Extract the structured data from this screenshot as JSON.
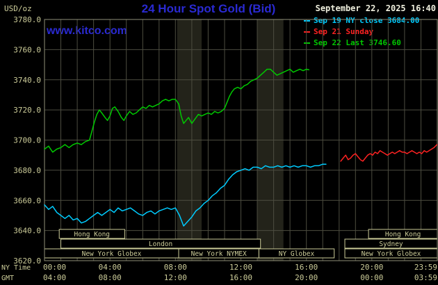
{
  "header": {
    "unit_label": "USD/oz",
    "title": "24 Hour Spot Gold (Bid)",
    "datetime": "September 22, 2025 16:40",
    "watermark": "www.kitco.com"
  },
  "legend": [
    {
      "label": "Sep 19 NY close 3684.00",
      "color": "#00ccff"
    },
    {
      "label": "Sep 21 Sunday",
      "color": "#ff2222"
    },
    {
      "label": "Sep 22 Last 3746.60",
      "color": "#00c800"
    }
  ],
  "axes": {
    "y_ticks": [
      "3780.0",
      "3760.0",
      "3740.0",
      "3720.0",
      "3700.0",
      "3680.0",
      "3660.0",
      "3640.0",
      "3620.0"
    ],
    "x_tick_hours": [
      0,
      4,
      8,
      12,
      16,
      20,
      24
    ],
    "x_ny_ticks": [
      "00:00",
      "04:00",
      "08:00",
      "12:00",
      "16:00",
      "20:00",
      "23:59"
    ],
    "x_gmt_ticks": [
      "04:00",
      "08:00",
      "12:00",
      "16:00",
      "20:00",
      "00:00",
      "03:59"
    ],
    "x_ny_label": "NY Time",
    "x_gmt_label": "GMT"
  },
  "chart_data": {
    "type": "line",
    "title": "24 Hour Spot Gold (Bid)",
    "ylabel": "USD/oz",
    "ylim": [
      3620,
      3780
    ],
    "xlim_hours": [
      0,
      24
    ],
    "grid": true,
    "x_unit": "hour of day, NY time",
    "shaded_bands_hours": [
      [
        8.1,
        9.6
      ],
      [
        13.0,
        14.6
      ]
    ],
    "series": [
      {
        "name": "Sep 19 NY close",
        "close": 3684.0,
        "color": "#00ccff",
        "points": [
          [
            0,
            3657
          ],
          [
            0.25,
            3654
          ],
          [
            0.5,
            3656
          ],
          [
            0.75,
            3652
          ],
          [
            1,
            3650
          ],
          [
            1.25,
            3648
          ],
          [
            1.5,
            3650
          ],
          [
            1.75,
            3647
          ],
          [
            2,
            3648
          ],
          [
            2.25,
            3645
          ],
          [
            2.5,
            3646
          ],
          [
            2.75,
            3648
          ],
          [
            3,
            3650
          ],
          [
            3.25,
            3652
          ],
          [
            3.5,
            3650
          ],
          [
            3.75,
            3652
          ],
          [
            4,
            3654
          ],
          [
            4.25,
            3652
          ],
          [
            4.5,
            3655
          ],
          [
            4.75,
            3653
          ],
          [
            5,
            3654
          ],
          [
            5.25,
            3655
          ],
          [
            5.5,
            3653
          ],
          [
            5.75,
            3651
          ],
          [
            6,
            3650
          ],
          [
            6.25,
            3652
          ],
          [
            6.5,
            3653
          ],
          [
            6.75,
            3651
          ],
          [
            7,
            3653
          ],
          [
            7.25,
            3654
          ],
          [
            7.5,
            3655
          ],
          [
            7.75,
            3654
          ],
          [
            8,
            3655
          ],
          [
            8.25,
            3650
          ],
          [
            8.5,
            3643
          ],
          [
            8.75,
            3646
          ],
          [
            9,
            3649
          ],
          [
            9.25,
            3653
          ],
          [
            9.5,
            3655
          ],
          [
            9.75,
            3658
          ],
          [
            10,
            3660
          ],
          [
            10.25,
            3663
          ],
          [
            10.5,
            3665
          ],
          [
            10.75,
            3668
          ],
          [
            11,
            3670
          ],
          [
            11.25,
            3674
          ],
          [
            11.5,
            3677
          ],
          [
            11.75,
            3679
          ],
          [
            12,
            3680
          ],
          [
            12.25,
            3681
          ],
          [
            12.5,
            3680
          ],
          [
            12.75,
            3682
          ],
          [
            13,
            3682
          ],
          [
            13.25,
            3681
          ],
          [
            13.5,
            3683
          ],
          [
            13.75,
            3682
          ],
          [
            14,
            3682
          ],
          [
            14.25,
            3683
          ],
          [
            14.5,
            3682
          ],
          [
            14.75,
            3683
          ],
          [
            15,
            3682
          ],
          [
            15.25,
            3683
          ],
          [
            15.5,
            3682
          ],
          [
            15.75,
            3683
          ],
          [
            16,
            3683
          ],
          [
            16.25,
            3682
          ],
          [
            16.5,
            3683
          ],
          [
            16.75,
            3683
          ],
          [
            17,
            3684
          ],
          [
            17.2,
            3684
          ]
        ]
      },
      {
        "name": "Sep 21 Sunday",
        "color": "#ff2222",
        "points": [
          [
            18.1,
            3686
          ],
          [
            18.25,
            3688
          ],
          [
            18.4,
            3690
          ],
          [
            18.55,
            3687
          ],
          [
            18.7,
            3688
          ],
          [
            18.85,
            3690
          ],
          [
            19,
            3691
          ],
          [
            19.15,
            3689
          ],
          [
            19.3,
            3687
          ],
          [
            19.45,
            3686
          ],
          [
            19.6,
            3688
          ],
          [
            19.75,
            3690
          ],
          [
            19.9,
            3691
          ],
          [
            20.05,
            3690
          ],
          [
            20.2,
            3692
          ],
          [
            20.35,
            3691
          ],
          [
            20.5,
            3693
          ],
          [
            20.65,
            3692
          ],
          [
            20.8,
            3691
          ],
          [
            20.95,
            3690
          ],
          [
            21.1,
            3691
          ],
          [
            21.25,
            3692
          ],
          [
            21.4,
            3691
          ],
          [
            21.55,
            3692
          ],
          [
            21.7,
            3693
          ],
          [
            21.85,
            3692
          ],
          [
            22,
            3692
          ],
          [
            22.15,
            3691
          ],
          [
            22.3,
            3692
          ],
          [
            22.45,
            3693
          ],
          [
            22.6,
            3692
          ],
          [
            22.75,
            3691
          ],
          [
            22.9,
            3692
          ],
          [
            23.05,
            3691
          ],
          [
            23.2,
            3693
          ],
          [
            23.35,
            3692
          ],
          [
            23.5,
            3693
          ],
          [
            23.65,
            3694
          ],
          [
            23.8,
            3695
          ],
          [
            23.98,
            3697
          ]
        ]
      },
      {
        "name": "Sep 22 Last",
        "last": 3746.6,
        "color": "#00c800",
        "points": [
          [
            0,
            3694
          ],
          [
            0.25,
            3696
          ],
          [
            0.5,
            3692
          ],
          [
            0.75,
            3694
          ],
          [
            1,
            3695
          ],
          [
            1.25,
            3697
          ],
          [
            1.5,
            3695
          ],
          [
            1.75,
            3697
          ],
          [
            2,
            3698
          ],
          [
            2.25,
            3697
          ],
          [
            2.5,
            3699
          ],
          [
            2.75,
            3700
          ],
          [
            2.9,
            3706
          ],
          [
            3.05,
            3712
          ],
          [
            3.2,
            3717
          ],
          [
            3.35,
            3720
          ],
          [
            3.5,
            3718
          ],
          [
            3.7,
            3715
          ],
          [
            3.85,
            3713
          ],
          [
            4,
            3716
          ],
          [
            4.15,
            3721
          ],
          [
            4.3,
            3722
          ],
          [
            4.5,
            3719
          ],
          [
            4.7,
            3715
          ],
          [
            4.85,
            3713
          ],
          [
            5,
            3716
          ],
          [
            5.2,
            3719
          ],
          [
            5.4,
            3717
          ],
          [
            5.6,
            3718
          ],
          [
            5.8,
            3720
          ],
          [
            6,
            3722
          ],
          [
            6.2,
            3721
          ],
          [
            6.4,
            3723
          ],
          [
            6.6,
            3722
          ],
          [
            6.8,
            3723
          ],
          [
            7,
            3724
          ],
          [
            7.2,
            3726
          ],
          [
            7.4,
            3727
          ],
          [
            7.6,
            3726
          ],
          [
            7.8,
            3727
          ],
          [
            8,
            3727
          ],
          [
            8.2,
            3724
          ],
          [
            8.35,
            3716
          ],
          [
            8.5,
            3711
          ],
          [
            8.65,
            3713
          ],
          [
            8.8,
            3715
          ],
          [
            9,
            3711
          ],
          [
            9.2,
            3714
          ],
          [
            9.4,
            3717
          ],
          [
            9.6,
            3716
          ],
          [
            9.8,
            3717
          ],
          [
            10,
            3718
          ],
          [
            10.2,
            3717
          ],
          [
            10.4,
            3719
          ],
          [
            10.6,
            3718
          ],
          [
            10.8,
            3719
          ],
          [
            11,
            3721
          ],
          [
            11.15,
            3725
          ],
          [
            11.3,
            3729
          ],
          [
            11.45,
            3732
          ],
          [
            11.6,
            3734
          ],
          [
            11.8,
            3735
          ],
          [
            12,
            3734
          ],
          [
            12.2,
            3736
          ],
          [
            12.4,
            3737
          ],
          [
            12.6,
            3739
          ],
          [
            12.8,
            3740
          ],
          [
            13,
            3741
          ],
          [
            13.2,
            3743
          ],
          [
            13.4,
            3745
          ],
          [
            13.6,
            3747
          ],
          [
            13.8,
            3747
          ],
          [
            14,
            3745
          ],
          [
            14.2,
            3743
          ],
          [
            14.4,
            3744
          ],
          [
            14.6,
            3745
          ],
          [
            14.8,
            3746
          ],
          [
            15,
            3747
          ],
          [
            15.2,
            3745
          ],
          [
            15.4,
            3746
          ],
          [
            15.6,
            3747
          ],
          [
            15.8,
            3746
          ],
          [
            16,
            3747
          ],
          [
            16.15,
            3746.6
          ]
        ]
      }
    ]
  },
  "sessions": {
    "rows": [
      {
        "boxes": [
          {
            "label": "Hong Kong",
            "start": 0.9,
            "end": 4.9
          },
          {
            "label": "Hong Kong",
            "start": 19.8,
            "end": 24
          }
        ]
      },
      {
        "boxes": [
          {
            "label": "London",
            "start": 1.0,
            "end": 13.2
          },
          {
            "label": "Sydney",
            "start": 18.35,
            "end": 24
          }
        ]
      },
      {
        "boxes": [
          {
            "label": "New York Globex",
            "start": 0,
            "end": 8.2
          },
          {
            "label": "New York NYMEX",
            "start": 8.2,
            "end": 13.1
          },
          {
            "label": "NY Globex",
            "start": 13.1,
            "end": 17.7
          },
          {
            "label": "New York Globex",
            "start": 18.35,
            "end": 24
          }
        ]
      }
    ]
  },
  "colors": {
    "background": "#000000",
    "title_blue": "#2a2ad2",
    "axis_tan": "#cccc99",
    "datetime_cream": "#eeeedd",
    "grid": "#4d4d40",
    "plot_border": "#8f8f78",
    "session_band": "#23231a",
    "session_box_fill": "#000000"
  }
}
